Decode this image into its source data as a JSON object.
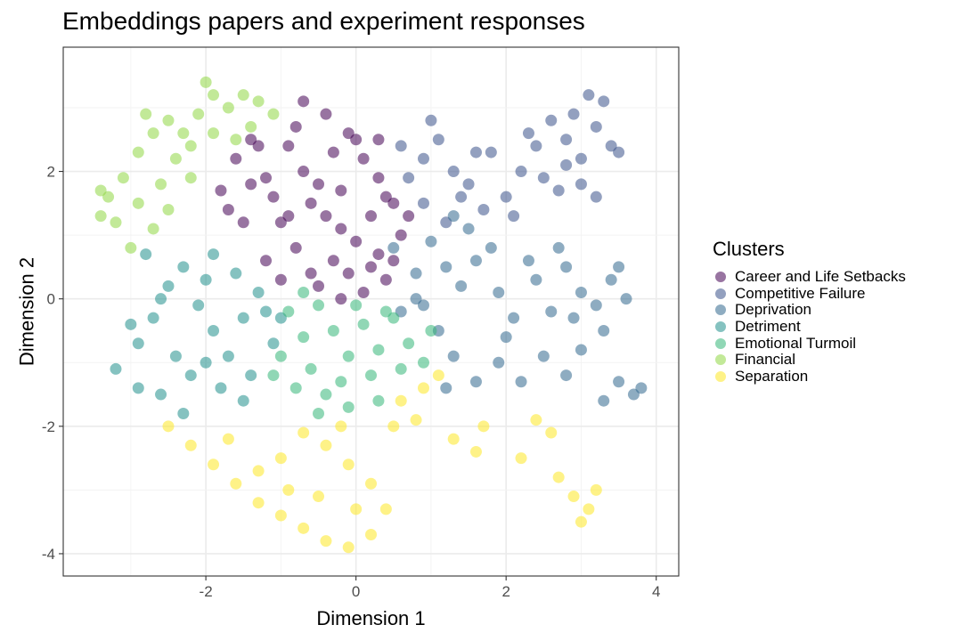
{
  "chart_data": {
    "type": "scatter",
    "title": "Embeddings papers and experiment responses",
    "xlabel": "Dimension 1",
    "ylabel": "Dimension 2",
    "xlim": [
      -3.9,
      4.3
    ],
    "ylim": [
      -4.35,
      3.95
    ],
    "x_ticks": [
      -2,
      0,
      2,
      4
    ],
    "y_ticks": [
      -4,
      -2,
      0,
      2
    ],
    "x_tick_labels": [
      "-2",
      "0",
      "2",
      "4"
    ],
    "y_tick_labels": [
      "-4",
      "-2",
      "0",
      "2"
    ],
    "grid": true,
    "legend_title": "Clusters",
    "legend_position": "right",
    "point_opacity": 0.55,
    "series": [
      {
        "name": "Career and Life Setbacks",
        "color": "#440154",
        "points": [
          [
            -1.6,
            2.2
          ],
          [
            -1.4,
            1.8
          ],
          [
            -1.1,
            1.6
          ],
          [
            -1.5,
            1.2
          ],
          [
            -1.2,
            1.9
          ],
          [
            -0.9,
            2.4
          ],
          [
            -0.7,
            2.0
          ],
          [
            -0.5,
            1.8
          ],
          [
            -0.3,
            2.3
          ],
          [
            -0.1,
            2.6
          ],
          [
            0.1,
            2.2
          ],
          [
            0.3,
            1.9
          ],
          [
            0.5,
            1.5
          ],
          [
            0.6,
            1.0
          ],
          [
            0.3,
            0.7
          ],
          [
            0.0,
            0.9
          ],
          [
            -0.3,
            0.6
          ],
          [
            -0.6,
            0.4
          ],
          [
            -0.8,
            0.8
          ],
          [
            -1.0,
            1.2
          ],
          [
            -1.2,
            0.6
          ],
          [
            -0.4,
            1.3
          ],
          [
            -0.2,
            1.1
          ],
          [
            0.2,
            1.3
          ],
          [
            0.4,
            0.3
          ],
          [
            0.1,
            0.1
          ],
          [
            -0.2,
            0.0
          ],
          [
            -0.5,
            0.2
          ],
          [
            0.5,
            0.6
          ],
          [
            -1.8,
            1.7
          ],
          [
            -1.3,
            2.4
          ],
          [
            -0.8,
            2.7
          ],
          [
            -0.4,
            2.9
          ],
          [
            0.0,
            2.5
          ],
          [
            -0.6,
            1.5
          ],
          [
            -0.9,
            1.3
          ],
          [
            0.2,
            0.5
          ],
          [
            -1.7,
            1.4
          ],
          [
            -0.2,
            1.7
          ],
          [
            0.3,
            2.5
          ],
          [
            -1.0,
            0.3
          ],
          [
            -0.7,
            3.1
          ],
          [
            -1.4,
            2.5
          ],
          [
            0.7,
            1.3
          ],
          [
            -0.1,
            0.4
          ],
          [
            0.4,
            1.6
          ]
        ]
      },
      {
        "name": "Competitive Failure",
        "color": "#3b528b",
        "points": [
          [
            0.6,
            2.4
          ],
          [
            0.9,
            2.2
          ],
          [
            1.1,
            2.5
          ],
          [
            1.3,
            2.0
          ],
          [
            1.5,
            1.8
          ],
          [
            1.8,
            2.3
          ],
          [
            2.2,
            2.0
          ],
          [
            2.4,
            2.4
          ],
          [
            2.6,
            2.8
          ],
          [
            2.8,
            2.5
          ],
          [
            3.0,
            2.2
          ],
          [
            3.2,
            2.7
          ],
          [
            3.3,
            3.1
          ],
          [
            3.1,
            3.2
          ],
          [
            3.4,
            2.4
          ],
          [
            3.0,
            1.8
          ],
          [
            2.7,
            1.7
          ],
          [
            2.5,
            1.9
          ],
          [
            2.0,
            1.6
          ],
          [
            1.7,
            1.4
          ],
          [
            1.2,
            1.2
          ],
          [
            0.9,
            1.5
          ],
          [
            0.7,
            1.9
          ],
          [
            1.0,
            2.8
          ],
          [
            1.6,
            2.3
          ],
          [
            2.9,
            2.9
          ],
          [
            3.5,
            2.3
          ],
          [
            2.3,
            2.6
          ],
          [
            1.4,
            1.6
          ],
          [
            2.1,
            1.3
          ],
          [
            3.2,
            1.6
          ],
          [
            2.8,
            2.1
          ]
        ]
      },
      {
        "name": "Deprivation",
        "color": "#31688e",
        "points": [
          [
            0.5,
            0.8
          ],
          [
            0.8,
            0.4
          ],
          [
            1.0,
            0.9
          ],
          [
            1.2,
            0.5
          ],
          [
            1.4,
            0.2
          ],
          [
            1.6,
            0.6
          ],
          [
            1.9,
            0.1
          ],
          [
            2.1,
            -0.3
          ],
          [
            2.4,
            0.3
          ],
          [
            2.6,
            -0.2
          ],
          [
            2.8,
            0.5
          ],
          [
            3.0,
            0.1
          ],
          [
            3.2,
            -0.1
          ],
          [
            3.4,
            0.3
          ],
          [
            3.6,
            0.0
          ],
          [
            3.3,
            -0.5
          ],
          [
            3.0,
            -0.8
          ],
          [
            2.8,
            -1.2
          ],
          [
            2.5,
            -0.9
          ],
          [
            2.2,
            -1.3
          ],
          [
            1.9,
            -1.0
          ],
          [
            1.6,
            -1.3
          ],
          [
            1.3,
            -0.9
          ],
          [
            1.1,
            -0.5
          ],
          [
            0.9,
            -0.1
          ],
          [
            0.6,
            -0.2
          ],
          [
            3.5,
            -1.3
          ],
          [
            3.7,
            -1.5
          ],
          [
            3.3,
            -1.6
          ],
          [
            2.9,
            -0.3
          ],
          [
            1.5,
            1.1
          ],
          [
            1.8,
            0.8
          ],
          [
            2.7,
            0.8
          ],
          [
            3.5,
            0.5
          ],
          [
            2.0,
            -0.6
          ],
          [
            1.2,
            -1.4
          ],
          [
            0.8,
            0.0
          ],
          [
            3.8,
            -1.4
          ],
          [
            1.3,
            1.3
          ],
          [
            2.3,
            0.6
          ]
        ]
      },
      {
        "name": "Detriment",
        "color": "#21908d",
        "points": [
          [
            -3.2,
            -1.1
          ],
          [
            -2.9,
            -0.7
          ],
          [
            -2.7,
            -0.3
          ],
          [
            -2.5,
            0.2
          ],
          [
            -2.3,
            0.5
          ],
          [
            -2.1,
            -0.1
          ],
          [
            -1.9,
            -0.5
          ],
          [
            -1.7,
            -0.9
          ],
          [
            -1.5,
            -0.3
          ],
          [
            -1.3,
            0.1
          ],
          [
            -1.1,
            -0.7
          ],
          [
            -1.4,
            -1.2
          ],
          [
            -1.8,
            -1.4
          ],
          [
            -2.2,
            -1.2
          ],
          [
            -2.6,
            -1.5
          ],
          [
            -2.4,
            -0.9
          ],
          [
            -2.0,
            0.3
          ],
          [
            -1.6,
            0.4
          ],
          [
            -1.2,
            -0.2
          ],
          [
            -2.8,
            0.7
          ],
          [
            -3.0,
            -0.4
          ],
          [
            -2.0,
            -1.0
          ],
          [
            -1.5,
            -1.6
          ],
          [
            -2.6,
            0.0
          ],
          [
            -1.9,
            0.7
          ],
          [
            -2.3,
            -1.8
          ],
          [
            -1.0,
            -0.3
          ],
          [
            -2.9,
            -1.4
          ]
        ]
      },
      {
        "name": "Emotional Turmoil",
        "color": "#35b779",
        "points": [
          [
            -0.9,
            -0.2
          ],
          [
            -0.7,
            -0.6
          ],
          [
            -0.5,
            -0.1
          ],
          [
            -0.3,
            -0.5
          ],
          [
            -0.1,
            -0.9
          ],
          [
            0.1,
            -0.4
          ],
          [
            0.3,
            -0.8
          ],
          [
            0.5,
            -0.3
          ],
          [
            0.7,
            -0.7
          ],
          [
            0.9,
            -1.0
          ],
          [
            -0.6,
            -1.1
          ],
          [
            -0.4,
            -1.5
          ],
          [
            -0.8,
            -1.4
          ],
          [
            -1.0,
            -0.9
          ],
          [
            -0.2,
            -1.3
          ],
          [
            0.2,
            -1.2
          ],
          [
            0.4,
            -0.2
          ],
          [
            0.6,
            -1.1
          ],
          [
            -0.5,
            -1.8
          ],
          [
            -0.1,
            -1.7
          ],
          [
            -0.7,
            0.1
          ],
          [
            0.0,
            -0.1
          ],
          [
            -1.1,
            -1.2
          ],
          [
            0.3,
            -1.6
          ],
          [
            1.0,
            -0.5
          ]
        ]
      },
      {
        "name": "Financial",
        "color": "#8fd744",
        "points": [
          [
            -3.4,
            1.3
          ],
          [
            -3.3,
            1.6
          ],
          [
            -3.1,
            1.9
          ],
          [
            -2.9,
            2.3
          ],
          [
            -2.7,
            2.6
          ],
          [
            -2.5,
            2.8
          ],
          [
            -2.3,
            2.6
          ],
          [
            -2.1,
            2.9
          ],
          [
            -1.9,
            3.2
          ],
          [
            -1.7,
            3.0
          ],
          [
            -1.5,
            3.2
          ],
          [
            -1.3,
            3.1
          ],
          [
            -1.1,
            2.9
          ],
          [
            -2.9,
            1.5
          ],
          [
            -2.7,
            1.1
          ],
          [
            -3.0,
            0.8
          ],
          [
            -2.6,
            1.8
          ],
          [
            -2.4,
            2.2
          ],
          [
            -2.2,
            1.9
          ],
          [
            -1.9,
            2.6
          ],
          [
            -1.6,
            2.5
          ],
          [
            -2.0,
            3.4
          ],
          [
            -2.8,
            2.9
          ],
          [
            -3.2,
            1.2
          ],
          [
            -2.5,
            1.4
          ],
          [
            -3.4,
            1.7
          ],
          [
            -2.2,
            2.4
          ],
          [
            -1.4,
            2.7
          ]
        ]
      },
      {
        "name": "Separation",
        "color": "#fde725",
        "points": [
          [
            -2.5,
            -2.0
          ],
          [
            -2.2,
            -2.3
          ],
          [
            -1.9,
            -2.6
          ],
          [
            -1.6,
            -2.9
          ],
          [
            -1.3,
            -3.2
          ],
          [
            -1.0,
            -3.4
          ],
          [
            -0.7,
            -3.6
          ],
          [
            -0.4,
            -3.8
          ],
          [
            -0.1,
            -3.9
          ],
          [
            0.2,
            -3.7
          ],
          [
            0.4,
            -3.3
          ],
          [
            0.2,
            -2.9
          ],
          [
            -0.1,
            -2.6
          ],
          [
            -0.4,
            -2.3
          ],
          [
            -0.7,
            -2.1
          ],
          [
            -1.0,
            -2.5
          ],
          [
            -1.3,
            -2.7
          ],
          [
            0.6,
            -1.6
          ],
          [
            0.9,
            -1.4
          ],
          [
            1.1,
            -1.2
          ],
          [
            0.8,
            -1.9
          ],
          [
            1.3,
            -2.2
          ],
          [
            1.6,
            -2.4
          ],
          [
            1.7,
            -2.0
          ],
          [
            2.4,
            -1.9
          ],
          [
            2.6,
            -2.1
          ],
          [
            2.7,
            -2.8
          ],
          [
            2.9,
            -3.1
          ],
          [
            3.1,
            -3.3
          ],
          [
            3.2,
            -3.0
          ],
          [
            -0.9,
            -3.0
          ],
          [
            -0.5,
            -3.1
          ],
          [
            0.0,
            -3.3
          ],
          [
            -1.7,
            -2.2
          ],
          [
            -0.2,
            -2.0
          ],
          [
            0.5,
            -2.0
          ],
          [
            3.0,
            -3.5
          ],
          [
            2.2,
            -2.5
          ]
        ]
      }
    ]
  }
}
